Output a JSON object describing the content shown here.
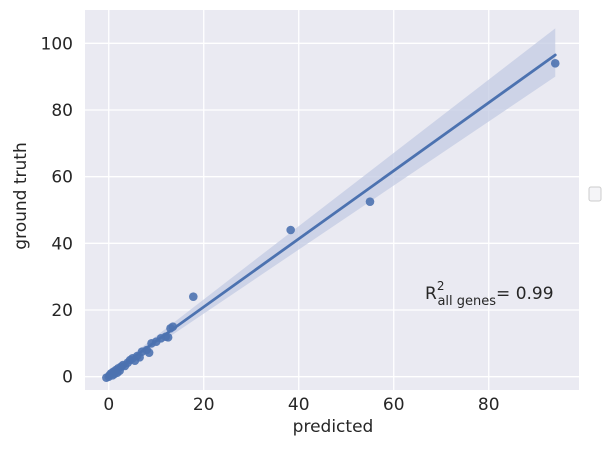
{
  "chart_data": {
    "type": "scatter",
    "xlabel": "predicted",
    "ylabel": "ground truth",
    "xlim": [
      -5,
      99
    ],
    "ylim": [
      -4,
      110
    ],
    "xticks": [
      0,
      20,
      40,
      60,
      80
    ],
    "yticks": [
      0,
      20,
      40,
      60,
      80,
      100
    ],
    "grid": true,
    "legend": "right, empty",
    "points": [
      {
        "x": -0.5,
        "y": -0.3
      },
      {
        "x": 0,
        "y": 0
      },
      {
        "x": 0.2,
        "y": 0.5
      },
      {
        "x": 0.5,
        "y": 1
      },
      {
        "x": 0.8,
        "y": 0.4
      },
      {
        "x": 1,
        "y": 1.5
      },
      {
        "x": 1.2,
        "y": 0.8
      },
      {
        "x": 1.5,
        "y": 2
      },
      {
        "x": 1.8,
        "y": 1.2
      },
      {
        "x": 2,
        "y": 2.5
      },
      {
        "x": 2.3,
        "y": 1.8
      },
      {
        "x": 2.6,
        "y": 3
      },
      {
        "x": 3,
        "y": 3.5
      },
      {
        "x": 3.4,
        "y": 3.2
      },
      {
        "x": 4,
        "y": 4.2
      },
      {
        "x": 4.5,
        "y": 5
      },
      {
        "x": 5,
        "y": 5.5
      },
      {
        "x": 5.5,
        "y": 4.8
      },
      {
        "x": 6,
        "y": 6.2
      },
      {
        "x": 6.5,
        "y": 5.8
      },
      {
        "x": 7,
        "y": 7.5
      },
      {
        "x": 8,
        "y": 8
      },
      {
        "x": 8.5,
        "y": 7.2
      },
      {
        "x": 9,
        "y": 10
      },
      {
        "x": 10,
        "y": 10.5
      },
      {
        "x": 11,
        "y": 11.5
      },
      {
        "x": 12,
        "y": 12
      },
      {
        "x": 12.5,
        "y": 11.8
      },
      {
        "x": 13,
        "y": 14.5
      },
      {
        "x": 13.5,
        "y": 15
      },
      {
        "x": 17.8,
        "y": 24
      },
      {
        "x": 38.3,
        "y": 44
      },
      {
        "x": 55,
        "y": 52.5
      },
      {
        "x": 94,
        "y": 94
      }
    ],
    "regression": {
      "x": [
        0,
        94
      ],
      "y": [
        0.5,
        96.5
      ]
    },
    "confidence_band": {
      "x": [
        0,
        94
      ],
      "upper": [
        1.2,
        104.5
      ],
      "lower": [
        -0.3,
        90
      ]
    },
    "annotation": {
      "prefix": "R",
      "superscript": "2",
      "subscript": "all genes",
      "suffix": "= 0.99"
    },
    "colors": {
      "plot_bg": "#eaeaf2",
      "grid": "#ffffff",
      "points": "#4c72b0",
      "line": "#4c72b0",
      "band": "#c3cbe3"
    }
  }
}
